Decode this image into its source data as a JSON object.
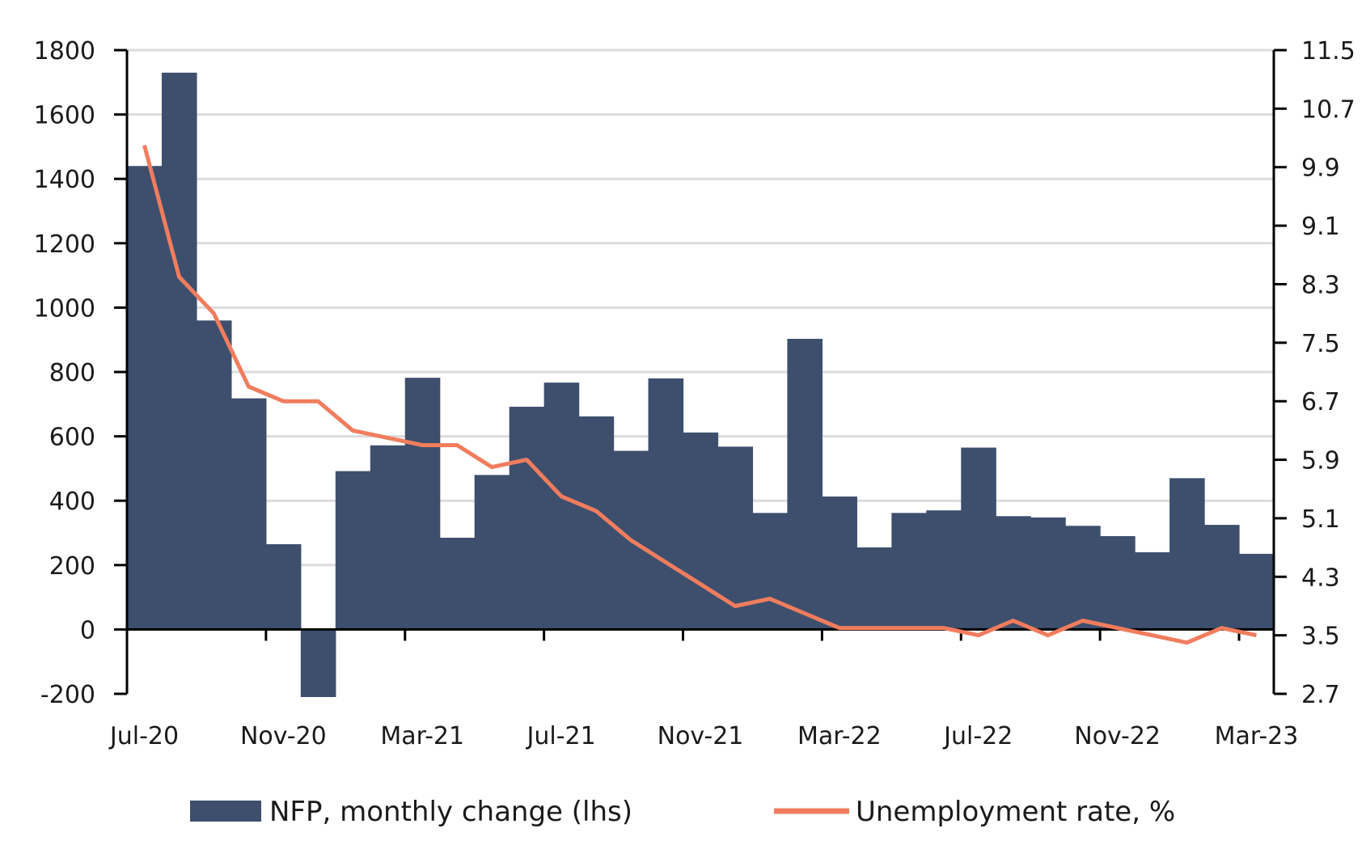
{
  "chart_data": {
    "type": "bar",
    "categories": [
      "Jul-20",
      "Aug-20",
      "Sep-20",
      "Oct-20",
      "Nov-20",
      "Dec-20",
      "Jan-21",
      "Feb-21",
      "Mar-21",
      "Apr-21",
      "May-21",
      "Jun-21",
      "Jul-21",
      "Aug-21",
      "Sep-21",
      "Oct-21",
      "Nov-21",
      "Dec-21",
      "Jan-22",
      "Feb-22",
      "Mar-22",
      "Apr-22",
      "May-22",
      "Jun-22",
      "Jul-22",
      "Aug-22",
      "Sep-22",
      "Oct-22",
      "Nov-22",
      "Dec-22",
      "Jan-23",
      "Feb-23",
      "Mar-23"
    ],
    "x_tick_labels": [
      "Jul-20",
      "Nov-20",
      "Mar-21",
      "Jul-21",
      "Nov-21",
      "Mar-22",
      "Jul-22",
      "Nov-22",
      "Mar-23"
    ],
    "y_left": {
      "ylim": [
        -200,
        1800
      ],
      "ticks": [
        "1800",
        "1600",
        "1400",
        "1200",
        "1000",
        "800",
        "600",
        "400",
        "200",
        "0",
        "-200"
      ],
      "tick_values": [
        1800,
        1600,
        1400,
        1200,
        1000,
        800,
        600,
        400,
        200,
        0,
        -200
      ]
    },
    "y_right": {
      "ylim": [
        2.7,
        11.5
      ],
      "ticks": [
        "11.5",
        "10.7",
        "9.9",
        "9.1",
        "8.3",
        "7.5",
        "6.7",
        "5.9",
        "5.1",
        "4.3",
        "3.5",
        "2.7"
      ],
      "tick_values": [
        11.5,
        10.7,
        9.9,
        9.1,
        8.3,
        7.5,
        6.7,
        5.9,
        5.1,
        4.3,
        3.5,
        2.7
      ]
    },
    "grid": "horizontal",
    "legend_position": "bottom",
    "series": [
      {
        "name": "NFP, monthly change (lhs)",
        "type": "bar",
        "axis": "left",
        "color": "#3d4f6d",
        "values": [
          1440,
          1730,
          960,
          718,
          265,
          -210,
          492,
          572,
          782,
          285,
          480,
          692,
          767,
          662,
          555,
          780,
          612,
          568,
          362,
          903,
          413,
          255,
          362,
          370,
          565,
          352,
          348,
          322,
          290,
          240,
          470,
          325,
          235
        ]
      },
      {
        "name": "Unemployment rate, %",
        "type": "line",
        "axis": "right",
        "color": "#f07d5e",
        "values": [
          10.2,
          8.4,
          7.9,
          6.9,
          6.7,
          6.7,
          6.3,
          6.2,
          6.1,
          6.1,
          5.8,
          5.9,
          5.4,
          5.2,
          4.8,
          4.5,
          4.2,
          3.9,
          4.0,
          3.8,
          3.6,
          3.6,
          3.6,
          3.6,
          3.5,
          3.7,
          3.5,
          3.7,
          3.6,
          3.5,
          3.4,
          3.6,
          3.5
        ]
      }
    ]
  }
}
